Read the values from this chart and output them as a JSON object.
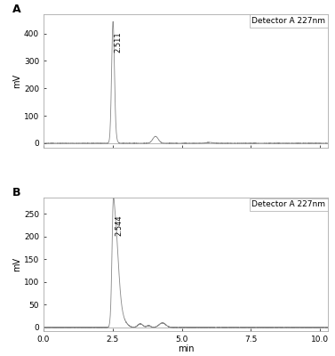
{
  "panel_A": {
    "label": "A",
    "ylabel": "mV",
    "detector_label": "Detector A 227nm",
    "peak_label": "2.511",
    "peak_x": 2.511,
    "peak_y": 430,
    "ylim": [
      -15,
      470
    ],
    "yticks": [
      0,
      100,
      200,
      300,
      400
    ],
    "small_peak_x": 4.05,
    "small_peak_y": 25,
    "tiny_peak_x": 6.0,
    "tiny_peak_y": 3
  },
  "panel_B": {
    "label": "B",
    "ylabel": "mV",
    "detector_label": "Detector A 227nm",
    "peak_label": "2.544",
    "peak_x": 2.544,
    "peak_y": 260,
    "ylim": [
      -8,
      285
    ],
    "yticks": [
      0,
      50,
      100,
      150,
      200,
      250
    ],
    "small_peak_x": 4.3,
    "small_peak_y": 10,
    "tiny_peak_x": 3.5,
    "tiny_peak_y": 8
  },
  "xlim": [
    0.0,
    10.3
  ],
  "xticks": [
    0.0,
    2.5,
    5.0,
    7.5,
    10.0
  ],
  "xtick_labels": [
    "0.0",
    "2.5",
    "5.0",
    "7.5",
    "10.0"
  ],
  "xlabel": "min",
  "line_color": "#888888",
  "background_color": "#ffffff",
  "bg_plot": "#ffffff",
  "detector_fontsize": 6.5,
  "label_fontsize": 7,
  "tick_fontsize": 6.5,
  "peak_fontsize": 6,
  "panel_label_fontsize": 9
}
